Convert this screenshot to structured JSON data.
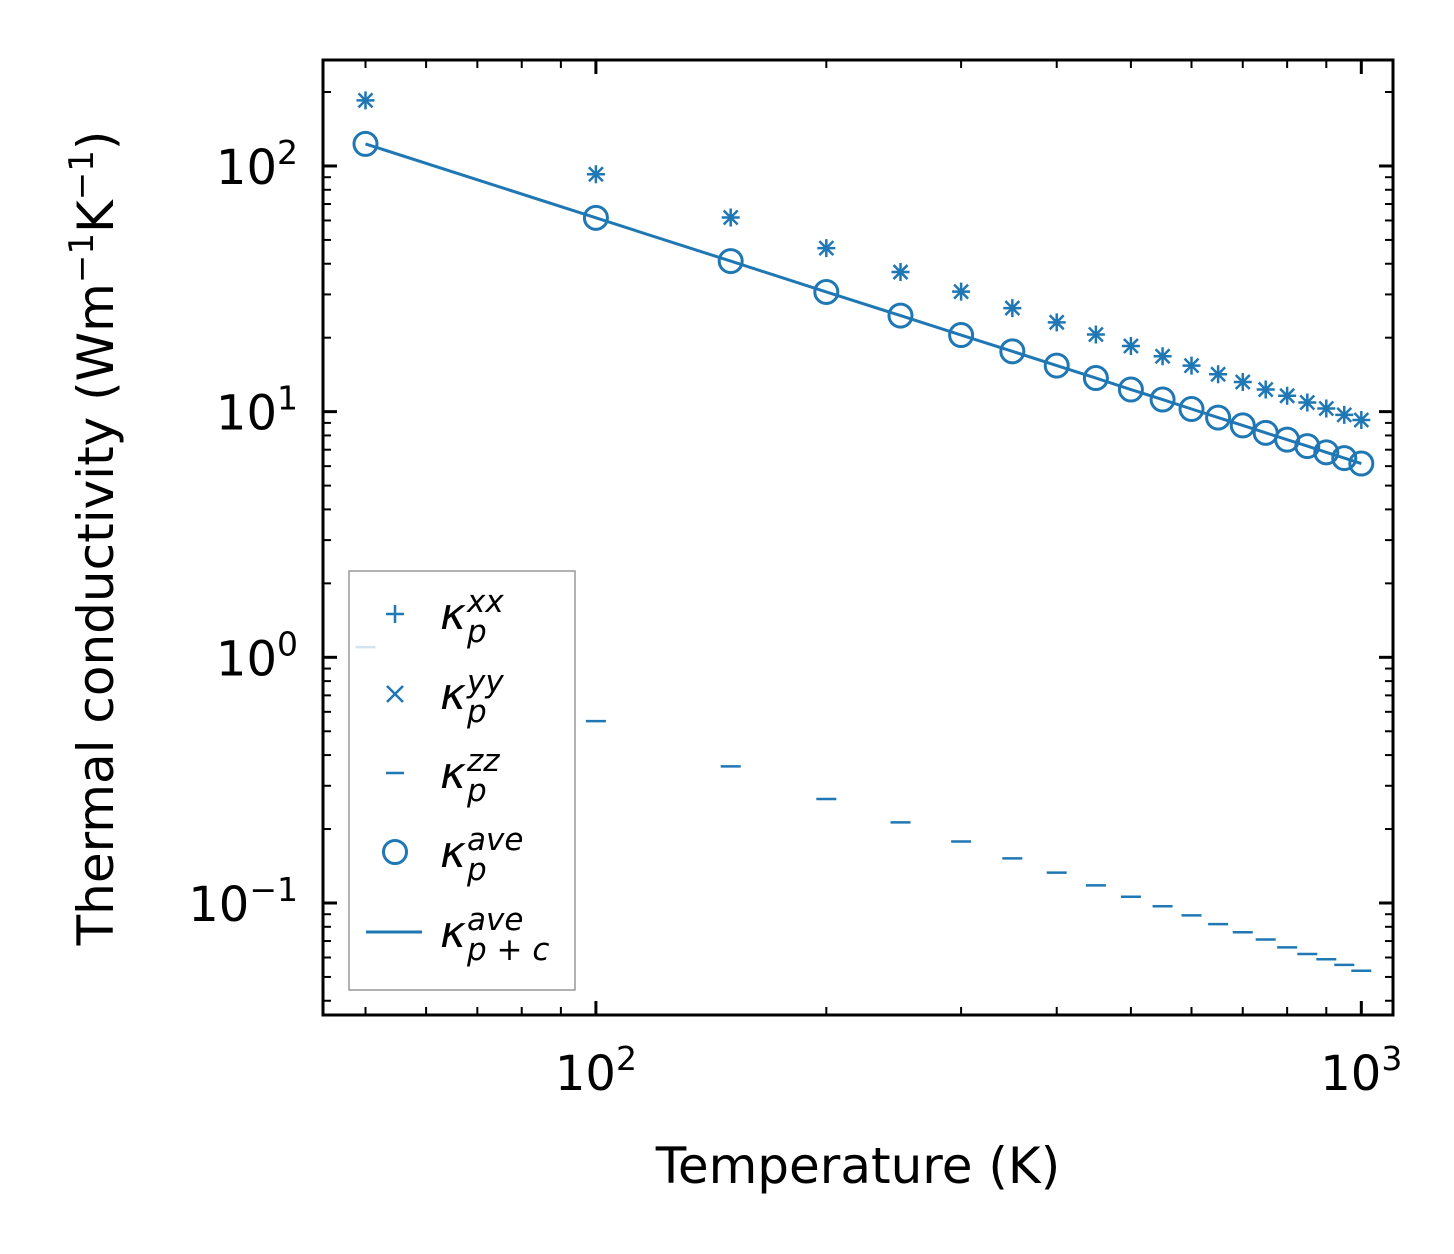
{
  "chart_data": {
    "type": "scatter",
    "xscale": "log",
    "yscale": "log",
    "xlabel": "Temperature (K)",
    "ylabel_main": "Thermal conductivity (Wm",
    "ylabel_sup1": "−1",
    "ylabel_mid": "K",
    "ylabel_sup2": "−1",
    "ylabel_end": ")",
    "xlim": [
      44,
      1100
    ],
    "ylim": [
      0.035,
      270
    ],
    "x_ticks": [
      {
        "base": "10",
        "exp": "2",
        "value": 100
      },
      {
        "base": "10",
        "exp": "3",
        "value": 1000
      }
    ],
    "y_ticks": [
      {
        "base": "10",
        "exp": "2",
        "value": 100
      },
      {
        "base": "10",
        "exp": "1",
        "value": 10
      },
      {
        "base": "10",
        "exp": "0",
        "value": 1
      },
      {
        "base": "10",
        "exp": "−1",
        "value": 0.1
      }
    ],
    "x": [
      50,
      100,
      150,
      200,
      250,
      300,
      350,
      400,
      450,
      500,
      550,
      600,
      650,
      700,
      750,
      800,
      850,
      900,
      950,
      1000
    ],
    "series": [
      {
        "name": "kappa_p_xx",
        "marker": "plus",
        "values": [
          185,
          92.5,
          61.7,
          46.3,
          37.0,
          30.8,
          26.4,
          23.1,
          20.6,
          18.5,
          16.8,
          15.4,
          14.2,
          13.2,
          12.3,
          11.6,
          10.9,
          10.3,
          9.7,
          9.25
        ]
      },
      {
        "name": "kappa_p_yy",
        "marker": "x",
        "values": [
          185,
          92.5,
          61.7,
          46.3,
          37.0,
          30.8,
          26.4,
          23.1,
          20.6,
          18.5,
          16.8,
          15.4,
          14.2,
          13.2,
          12.3,
          11.6,
          10.9,
          10.3,
          9.7,
          9.25
        ]
      },
      {
        "name": "kappa_p_zz",
        "marker": "hline",
        "values": [
          1.1,
          0.55,
          0.36,
          0.265,
          0.213,
          0.178,
          0.152,
          0.133,
          0.118,
          0.106,
          0.097,
          0.089,
          0.082,
          0.076,
          0.071,
          0.066,
          0.062,
          0.059,
          0.056,
          0.053
        ]
      },
      {
        "name": "kappa_p_ave",
        "marker": "circle",
        "values": [
          123,
          61.5,
          41.0,
          30.7,
          24.6,
          20.5,
          17.6,
          15.4,
          13.7,
          12.3,
          11.2,
          10.25,
          9.46,
          8.79,
          8.2,
          7.69,
          7.24,
          6.83,
          6.47,
          6.15
        ]
      },
      {
        "name": "kappa_p+c_ave",
        "marker": "line",
        "values": [
          123,
          61.5,
          41.0,
          30.7,
          24.6,
          20.5,
          17.6,
          15.4,
          13.7,
          12.3,
          11.2,
          10.25,
          9.46,
          8.79,
          8.2,
          7.69,
          7.24,
          6.83,
          6.47,
          6.15
        ]
      }
    ],
    "legend": {
      "position": "lower-left",
      "entries": [
        {
          "symbol": "κ",
          "sub": "p",
          "sup": "xx"
        },
        {
          "symbol": "κ",
          "sub": "p",
          "sup": "yy"
        },
        {
          "symbol": "κ",
          "sub": "p",
          "sup": "zz"
        },
        {
          "symbol": "κ",
          "sub": "p",
          "sup": "ave"
        },
        {
          "symbol": "κ",
          "sub": "p + c",
          "sup": "ave"
        }
      ]
    },
    "color": "#1f77b4"
  }
}
